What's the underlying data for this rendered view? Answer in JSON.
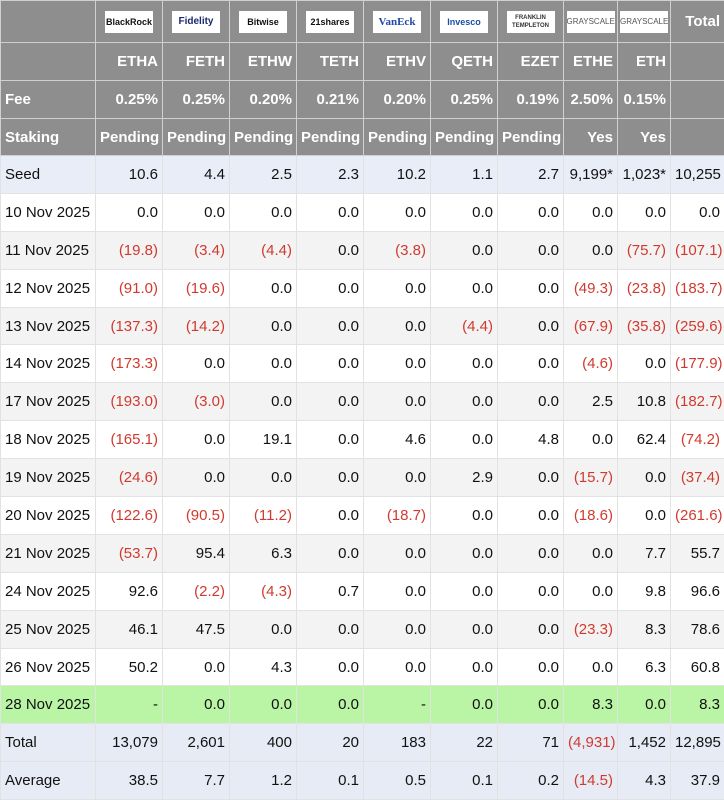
{
  "header": {
    "issuers": [
      "BlackRock",
      "Fidelity",
      "Bitwise",
      "21shares",
      "VanEck",
      "Invesco",
      "FRANKLIN TEMPLETON",
      "GRAYSCALE",
      "GRAYSCALE"
    ],
    "total": "Total",
    "tickers": [
      "ETHA",
      "FETH",
      "ETHW",
      "TETH",
      "ETHV",
      "QETH",
      "EZET",
      "ETHE",
      "ETH"
    ],
    "info_rows": [
      [
        "Fee",
        "0.25%",
        "0.25%",
        "0.20%",
        "0.21%",
        "0.20%",
        "0.25%",
        "0.19%",
        "2.50%",
        "0.15%",
        null
      ],
      [
        "Staking",
        "Pending",
        "Pending",
        "Pending",
        "Pending",
        "Pending",
        "Pending",
        "Pending",
        "Yes",
        "Yes",
        null
      ]
    ]
  },
  "table": {
    "rows": [
      [
        "Seed",
        "10.6",
        "4.4",
        "2.5",
        "2.3",
        "10.2",
        "1.1",
        "2.7",
        "9,199*",
        "1,023*",
        "10,255"
      ],
      [
        "10 Nov 2025",
        "0.0",
        "0.0",
        "0.0",
        "0.0",
        "0.0",
        "0.0",
        "0.0",
        "0.0",
        "0.0",
        "0.0"
      ],
      [
        "11 Nov 2025",
        "(19.8)",
        "(3.4)",
        "(4.4)",
        "0.0",
        "(3.8)",
        "0.0",
        "0.0",
        "0.0",
        "(75.7)",
        "(107.1)"
      ],
      [
        "12 Nov 2025",
        "(91.0)",
        "(19.6)",
        "0.0",
        "0.0",
        "0.0",
        "0.0",
        "0.0",
        "(49.3)",
        "(23.8)",
        "(183.7)"
      ],
      [
        "13 Nov 2025",
        "(137.3)",
        "(14.2)",
        "0.0",
        "0.0",
        "0.0",
        "(4.4)",
        "0.0",
        "(67.9)",
        "(35.8)",
        "(259.6)"
      ],
      [
        "14 Nov 2025",
        "(173.3)",
        "0.0",
        "0.0",
        "0.0",
        "0.0",
        "0.0",
        "0.0",
        "(4.6)",
        "0.0",
        "(177.9)"
      ],
      [
        "17 Nov 2025",
        "(193.0)",
        "(3.0)",
        "0.0",
        "0.0",
        "0.0",
        "0.0",
        "0.0",
        "2.5",
        "10.8",
        "(182.7)"
      ],
      [
        "18 Nov 2025",
        "(165.1)",
        "0.0",
        "19.1",
        "0.0",
        "4.6",
        "0.0",
        "4.8",
        "0.0",
        "62.4",
        "(74.2)"
      ],
      [
        "19 Nov 2025",
        "(24.6)",
        "0.0",
        "0.0",
        "0.0",
        "0.0",
        "2.9",
        "0.0",
        "(15.7)",
        "0.0",
        "(37.4)"
      ],
      [
        "20 Nov 2025",
        "(122.6)",
        "(90.5)",
        "(11.2)",
        "0.0",
        "(18.7)",
        "0.0",
        "0.0",
        "(18.6)",
        "0.0",
        "(261.6)"
      ],
      [
        "21 Nov 2025",
        "(53.7)",
        "95.4",
        "6.3",
        "0.0",
        "0.0",
        "0.0",
        "0.0",
        "0.0",
        "7.7",
        "55.7"
      ],
      [
        "24 Nov 2025",
        "92.6",
        "(2.2)",
        "(4.3)",
        "0.7",
        "0.0",
        "0.0",
        "0.0",
        "0.0",
        "9.8",
        "96.6"
      ],
      [
        "25 Nov 2025",
        "46.1",
        "47.5",
        "0.0",
        "0.0",
        "0.0",
        "0.0",
        "0.0",
        "(23.3)",
        "8.3",
        "78.6"
      ],
      [
        "26 Nov 2025",
        "50.2",
        "0.0",
        "4.3",
        "0.0",
        "0.0",
        "0.0",
        "0.0",
        "0.0",
        "6.3",
        "60.8"
      ],
      [
        "28 Nov 2025",
        "-",
        "0.0",
        "0.0",
        "0.0",
        "-",
        "0.0",
        "0.0",
        "8.3",
        "0.0",
        "8.3"
      ],
      [
        "Total",
        "13,079",
        "2,601",
        "400",
        "20",
        "183",
        "22",
        "71",
        "(4,931)",
        "1,452",
        "12,895"
      ],
      [
        "Average",
        "38.5",
        "7.7",
        "1.2",
        "0.1",
        "0.5",
        "0.1",
        "0.2",
        "(14.5)",
        "4.3",
        "37.9"
      ]
    ]
  }
}
